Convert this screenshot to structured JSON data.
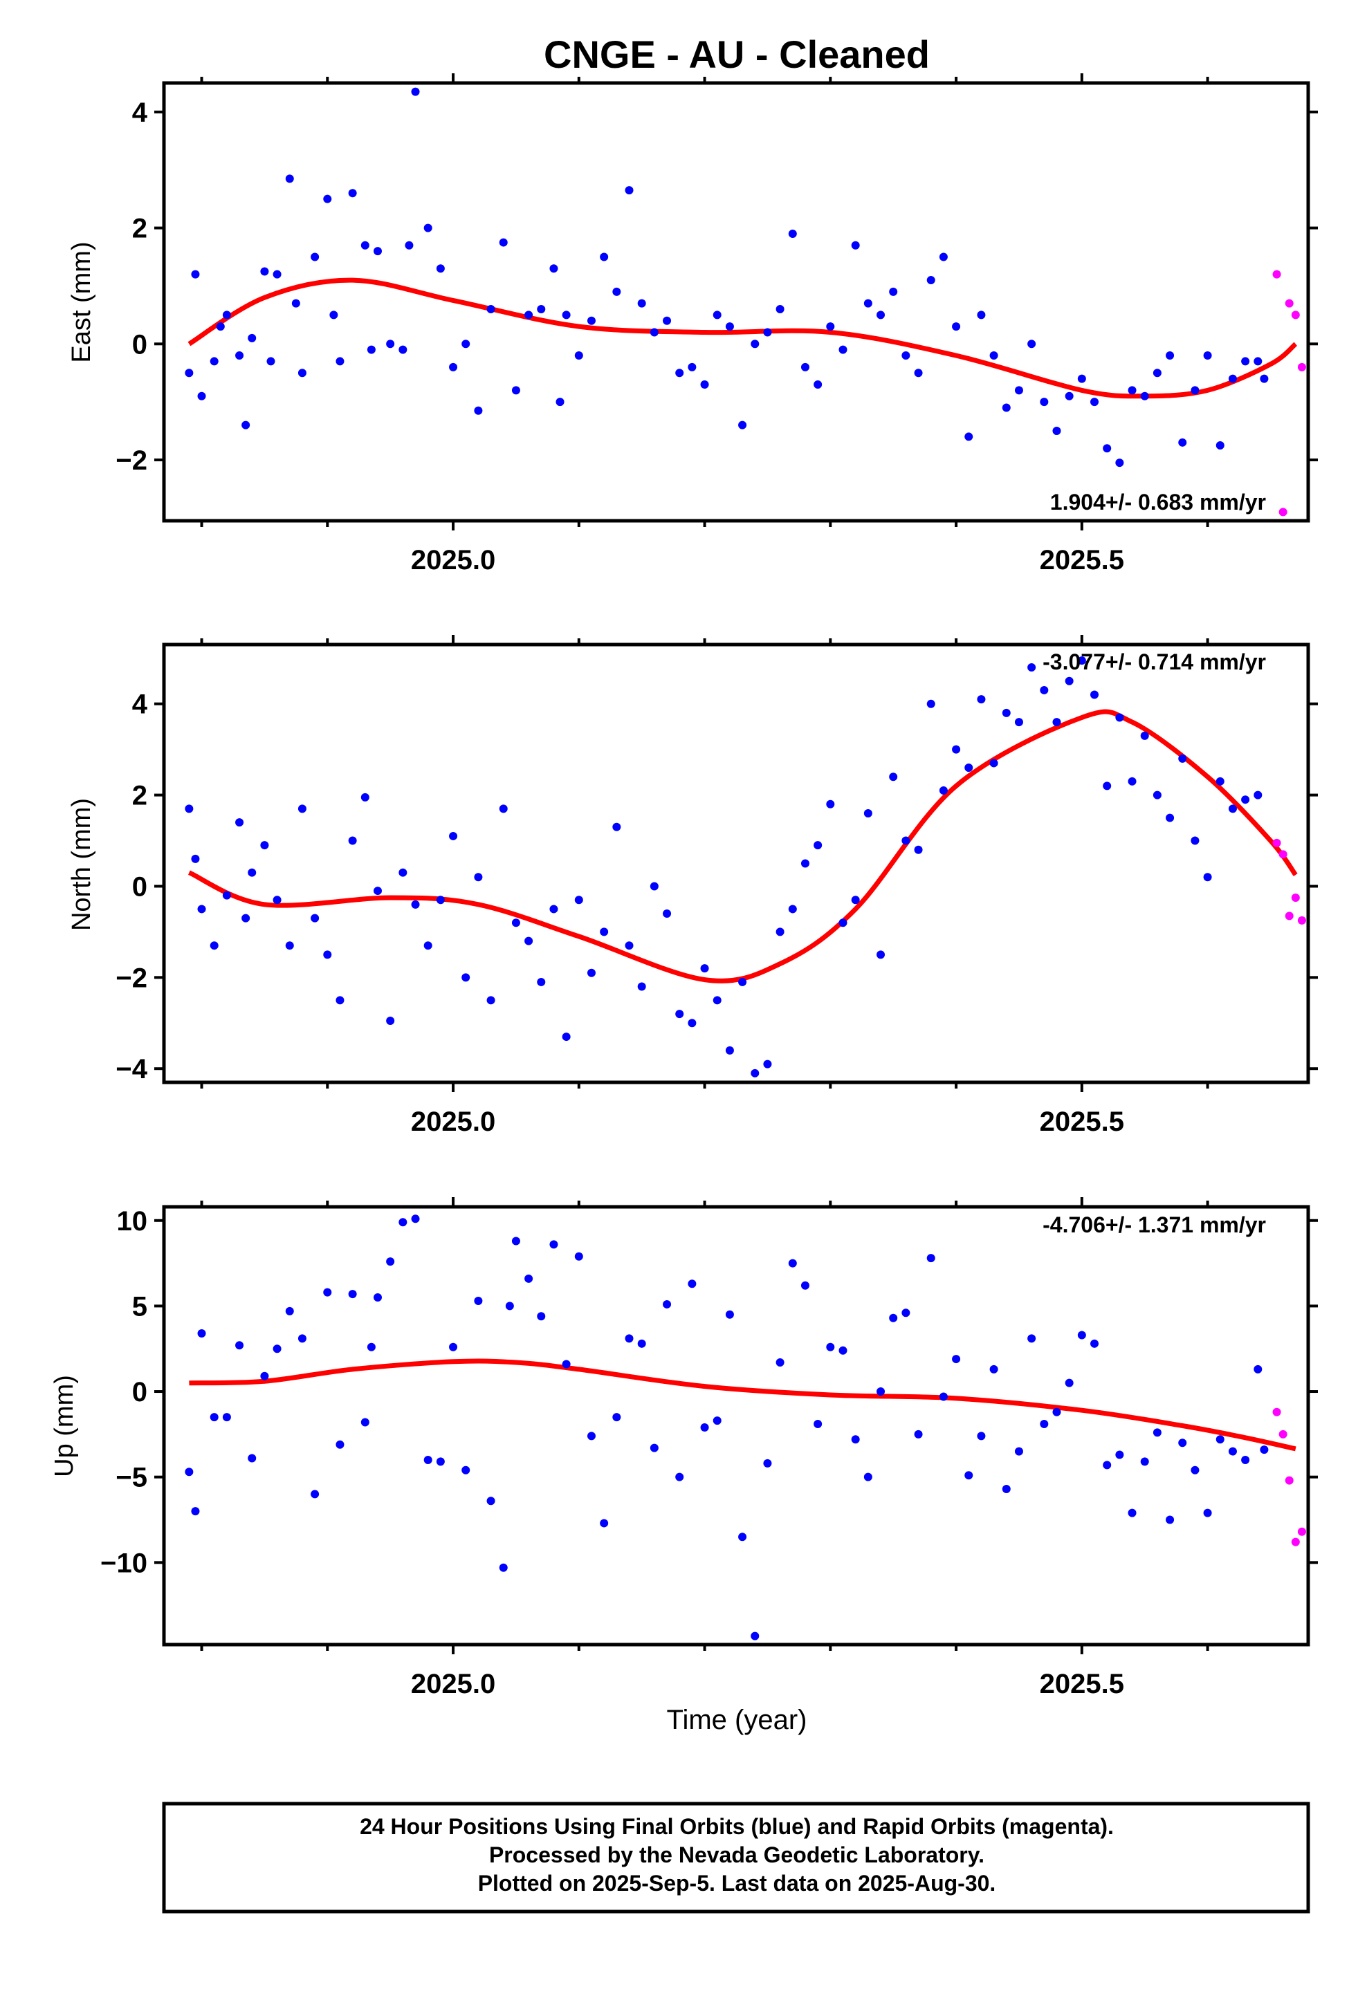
{
  "title": "CNGE  - AU - Cleaned",
  "footer": {
    "line1": "24 Hour Positions Using Final Orbits (blue) and Rapid Orbits (magenta).",
    "line2": "Processed by the Nevada Geodetic Laboratory.",
    "line3": "Plotted on 2025-Sep-5. Last data on 2025-Aug-30."
  },
  "colors": {
    "final": "#0000ff",
    "rapid": "#ff00ff",
    "fit": "#ff0000",
    "frame": "#000000"
  },
  "chart_data": [
    {
      "type": "scatter",
      "name": "east",
      "ylabel": "East (mm)",
      "xlabel": "",
      "xlim": [
        2024.77,
        2025.68
      ],
      "ylim": [
        -3.05,
        4.5
      ],
      "yticks": [
        -2,
        0,
        2,
        4
      ],
      "yticklabels": [
        "−2",
        "0",
        "2",
        "4"
      ],
      "xticks": [
        2025.0,
        2025.5
      ],
      "xticklabels": [
        "2025.0",
        "2025.5"
      ],
      "rate": "1.904+/- 0.683 mm/yr",
      "rate_position": "bottom-right",
      "fit": {
        "x": [
          2024.79,
          2024.85,
          2024.92,
          2025.0,
          2025.1,
          2025.2,
          2025.3,
          2025.4,
          2025.5,
          2025.55,
          2025.6,
          2025.65,
          2025.67
        ],
        "y": [
          0.0,
          0.8,
          1.1,
          0.75,
          0.3,
          0.2,
          0.2,
          -0.2,
          -0.8,
          -0.9,
          -0.8,
          -0.35,
          0.0
        ]
      },
      "series": [
        {
          "name": "Final Orbits",
          "color_key": "final",
          "x": [
            2024.79,
            2024.795,
            2024.8,
            2024.81,
            2024.815,
            2024.82,
            2024.83,
            2024.835,
            2024.84,
            2024.85,
            2024.855,
            2024.86,
            2024.87,
            2024.875,
            2024.88,
            2024.89,
            2024.9,
            2024.905,
            2024.91,
            2024.92,
            2024.93,
            2024.935,
            2024.94,
            2024.95,
            2024.96,
            2024.965,
            2024.97,
            2024.98,
            2024.99,
            2025.0,
            2025.01,
            2025.02,
            2025.03,
            2025.04,
            2025.05,
            2025.06,
            2025.07,
            2025.08,
            2025.085,
            2025.09,
            2025.1,
            2025.11,
            2025.12,
            2025.13,
            2025.14,
            2025.15,
            2025.16,
            2025.17,
            2025.18,
            2025.19,
            2025.2,
            2025.21,
            2025.22,
            2025.23,
            2025.24,
            2025.25,
            2025.26,
            2025.27,
            2025.28,
            2025.29,
            2025.3,
            2025.31,
            2025.32,
            2025.33,
            2025.34,
            2025.35,
            2025.36,
            2025.37,
            2025.38,
            2025.39,
            2025.4,
            2025.41,
            2025.42,
            2025.43,
            2025.44,
            2025.45,
            2025.46,
            2025.47,
            2025.48,
            2025.49,
            2025.5,
            2025.51,
            2025.52,
            2025.53,
            2025.54,
            2025.55,
            2025.56,
            2025.57,
            2025.58,
            2025.59,
            2025.6,
            2025.61,
            2025.62,
            2025.63,
            2025.64,
            2025.645
          ],
          "y": [
            -0.5,
            1.2,
            -0.9,
            -0.3,
            0.3,
            0.5,
            -0.2,
            -1.4,
            0.1,
            1.25,
            -0.3,
            1.2,
            2.85,
            0.7,
            -0.5,
            1.5,
            2.5,
            0.5,
            -0.3,
            2.6,
            1.7,
            -0.1,
            1.6,
            0.0,
            -0.1,
            1.7,
            4.35,
            2.0,
            1.3,
            -0.4,
            0.0,
            -1.15,
            0.6,
            1.75,
            -0.8,
            0.5,
            0.6,
            1.3,
            -1.0,
            0.5,
            -0.2,
            0.4,
            1.5,
            0.9,
            2.65,
            0.7,
            0.2,
            0.4,
            -0.5,
            -0.4,
            -0.7,
            0.5,
            0.3,
            -1.4,
            0.0,
            0.2,
            0.6,
            1.9,
            -0.4,
            -0.7,
            0.3,
            -0.1,
            1.7,
            0.7,
            0.5,
            0.9,
            -0.2,
            -0.5,
            1.1,
            1.5,
            0.3,
            -1.6,
            0.5,
            -0.2,
            -1.1,
            -0.8,
            0.0,
            -1.0,
            -1.5,
            -0.9,
            -0.6,
            -1.0,
            -1.8,
            -2.05,
            -0.8,
            -0.9,
            -0.5,
            -0.2,
            -1.7,
            -0.8,
            -0.2,
            -1.75,
            -0.6,
            -0.3,
            -0.3,
            -0.6
          ]
        },
        {
          "name": "Rapid Orbits",
          "color_key": "rapid",
          "x": [
            2025.655,
            2025.66,
            2025.665,
            2025.67,
            2025.675
          ],
          "y": [
            1.2,
            -2.9,
            0.7,
            0.5,
            -0.4
          ]
        }
      ]
    },
    {
      "type": "scatter",
      "name": "north",
      "ylabel": "North (mm)",
      "xlabel": "",
      "xlim": [
        2024.77,
        2025.68
      ],
      "ylim": [
        -4.3,
        5.3
      ],
      "yticks": [
        -4,
        -2,
        0,
        2,
        4
      ],
      "yticklabels": [
        "−4",
        "−2",
        "0",
        "2",
        "4"
      ],
      "xticks": [
        2025.0,
        2025.5
      ],
      "xticklabels": [
        "2025.0",
        "2025.5"
      ],
      "rate": "-3.077+/- 0.714 mm/yr",
      "rate_position": "top-right",
      "fit": {
        "x": [
          2024.79,
          2024.85,
          2024.95,
          2025.02,
          2025.1,
          2025.2,
          2025.26,
          2025.32,
          2025.4,
          2025.5,
          2025.54,
          2025.6,
          2025.65,
          2025.67
        ],
        "y": [
          0.3,
          -0.4,
          -0.25,
          -0.4,
          -1.1,
          -2.05,
          -1.7,
          -0.5,
          2.2,
          3.7,
          3.6,
          2.4,
          1.0,
          0.25
        ]
      },
      "series": [
        {
          "name": "Final Orbits",
          "color_key": "final",
          "x": [
            2024.79,
            2024.795,
            2024.8,
            2024.81,
            2024.82,
            2024.83,
            2024.835,
            2024.84,
            2024.85,
            2024.86,
            2024.87,
            2024.88,
            2024.89,
            2024.9,
            2024.91,
            2024.92,
            2024.93,
            2024.94,
            2024.95,
            2024.96,
            2024.97,
            2024.98,
            2024.99,
            2025.0,
            2025.01,
            2025.02,
            2025.03,
            2025.04,
            2025.05,
            2025.06,
            2025.07,
            2025.08,
            2025.09,
            2025.1,
            2025.11,
            2025.12,
            2025.13,
            2025.14,
            2025.15,
            2025.16,
            2025.17,
            2025.18,
            2025.19,
            2025.2,
            2025.21,
            2025.22,
            2025.23,
            2025.24,
            2025.25,
            2025.26,
            2025.27,
            2025.28,
            2025.29,
            2025.3,
            2025.31,
            2025.32,
            2025.33,
            2025.34,
            2025.35,
            2025.36,
            2025.37,
            2025.38,
            2025.39,
            2025.4,
            2025.41,
            2025.42,
            2025.43,
            2025.44,
            2025.45,
            2025.46,
            2025.47,
            2025.48,
            2025.49,
            2025.5,
            2025.51,
            2025.52,
            2025.53,
            2025.54,
            2025.55,
            2025.56,
            2025.57,
            2025.58,
            2025.59,
            2025.6,
            2025.61,
            2025.62,
            2025.63,
            2025.64
          ],
          "y": [
            1.7,
            0.6,
            -0.5,
            -1.3,
            -0.2,
            1.4,
            -0.7,
            0.3,
            0.9,
            -0.3,
            -1.3,
            1.7,
            -0.7,
            -1.5,
            -2.5,
            1.0,
            1.95,
            -0.1,
            -2.95,
            0.3,
            -0.4,
            -1.3,
            -0.3,
            1.1,
            -2.0,
            0.2,
            -2.5,
            1.7,
            -0.8,
            -1.2,
            -2.1,
            -0.5,
            -3.3,
            -0.3,
            -1.9,
            -1.0,
            1.3,
            -1.3,
            -2.2,
            0.0,
            -0.6,
            -2.8,
            -3.0,
            -1.8,
            -2.5,
            -3.6,
            -2.1,
            -4.1,
            -3.9,
            -1.0,
            -0.5,
            0.5,
            0.9,
            1.8,
            -0.8,
            -0.3,
            1.6,
            -1.5,
            2.4,
            1.0,
            0.8,
            4.0,
            2.1,
            3.0,
            2.6,
            4.1,
            2.7,
            3.8,
            3.6,
            4.8,
            4.3,
            3.6,
            4.5,
            4.95,
            4.2,
            2.2,
            3.7,
            2.3,
            3.3,
            2.0,
            1.5,
            2.8,
            1.0,
            0.2,
            2.3,
            1.7,
            1.9,
            2.0
          ]
        },
        {
          "name": "Rapid Orbits",
          "color_key": "rapid",
          "x": [
            2025.655,
            2025.66,
            2025.665,
            2025.67,
            2025.675
          ],
          "y": [
            0.95,
            0.7,
            -0.65,
            -0.25,
            -0.75
          ]
        }
      ]
    },
    {
      "type": "scatter",
      "name": "up",
      "ylabel": "Up (mm)",
      "xlabel": "Time (year)",
      "xlim": [
        2024.77,
        2025.68
      ],
      "ylim": [
        -14.8,
        10.8
      ],
      "yticks": [
        -10,
        -5,
        0,
        5,
        10
      ],
      "yticklabels": [
        "−10",
        "−5",
        "0",
        "5",
        "10"
      ],
      "xticks": [
        2025.0,
        2025.5
      ],
      "xticklabels": [
        "2025.0",
        "2025.5"
      ],
      "rate": "-4.706+/- 1.371 mm/yr",
      "rate_position": "top-right",
      "fit": {
        "x": [
          2024.79,
          2024.85,
          2024.92,
          2025.0,
          2025.05,
          2025.1,
          2025.2,
          2025.3,
          2025.4,
          2025.5,
          2025.58,
          2025.63,
          2025.67
        ],
        "y": [
          0.5,
          0.6,
          1.3,
          1.75,
          1.7,
          1.3,
          0.3,
          -0.2,
          -0.4,
          -1.1,
          -2.0,
          -2.7,
          -3.35
        ]
      },
      "series": [
        {
          "name": "Final Orbits",
          "color_key": "final",
          "x": [
            2024.79,
            2024.795,
            2024.8,
            2024.81,
            2024.82,
            2024.83,
            2024.84,
            2024.85,
            2024.86,
            2024.87,
            2024.88,
            2024.89,
            2024.9,
            2024.91,
            2024.92,
            2024.93,
            2024.935,
            2024.94,
            2024.95,
            2024.96,
            2024.97,
            2024.98,
            2024.99,
            2025.0,
            2025.01,
            2025.02,
            2025.03,
            2025.04,
            2025.045,
            2025.05,
            2025.06,
            2025.07,
            2025.08,
            2025.09,
            2025.1,
            2025.11,
            2025.12,
            2025.13,
            2025.14,
            2025.15,
            2025.16,
            2025.17,
            2025.18,
            2025.19,
            2025.2,
            2025.21,
            2025.22,
            2025.23,
            2025.24,
            2025.25,
            2025.26,
            2025.27,
            2025.28,
            2025.29,
            2025.3,
            2025.31,
            2025.32,
            2025.33,
            2025.34,
            2025.35,
            2025.36,
            2025.37,
            2025.38,
            2025.39,
            2025.4,
            2025.41,
            2025.42,
            2025.43,
            2025.44,
            2025.45,
            2025.46,
            2025.47,
            2025.48,
            2025.49,
            2025.5,
            2025.51,
            2025.52,
            2025.53,
            2025.54,
            2025.55,
            2025.56,
            2025.57,
            2025.58,
            2025.59,
            2025.6,
            2025.61,
            2025.62,
            2025.63,
            2025.64,
            2025.645
          ],
          "y": [
            -4.7,
            -7.0,
            3.4,
            -1.5,
            -1.5,
            2.7,
            -3.9,
            0.9,
            2.5,
            4.7,
            3.1,
            -6.0,
            5.8,
            -3.1,
            5.7,
            -1.8,
            2.6,
            5.5,
            7.6,
            9.9,
            10.1,
            -4.0,
            -4.1,
            2.6,
            -4.6,
            5.3,
            -6.4,
            -10.3,
            5.0,
            8.8,
            6.6,
            4.4,
            8.6,
            1.6,
            7.9,
            -2.6,
            -7.7,
            -1.5,
            3.1,
            2.8,
            -3.3,
            5.1,
            -5.0,
            6.3,
            -2.1,
            -1.7,
            4.5,
            -8.5,
            -14.3,
            -4.2,
            1.7,
            7.5,
            6.2,
            -1.9,
            2.6,
            2.4,
            -2.8,
            -5.0,
            0.0,
            4.3,
            4.6,
            -2.5,
            7.8,
            -0.3,
            1.9,
            -4.9,
            -2.6,
            1.3,
            -5.7,
            -3.5,
            3.1,
            -1.9,
            -1.2,
            0.5,
            3.3,
            2.8,
            -4.3,
            -3.7,
            -7.1,
            -4.1,
            -2.4,
            -7.5,
            -3.0,
            -4.6,
            -7.1,
            -2.8,
            -3.5,
            -4.0,
            1.3,
            -3.4
          ]
        },
        {
          "name": "Rapid Orbits",
          "color_key": "rapid",
          "x": [
            2025.655,
            2025.66,
            2025.665,
            2025.67,
            2025.675
          ],
          "y": [
            -1.2,
            -2.5,
            -5.2,
            -8.8,
            -8.2
          ]
        }
      ]
    }
  ]
}
